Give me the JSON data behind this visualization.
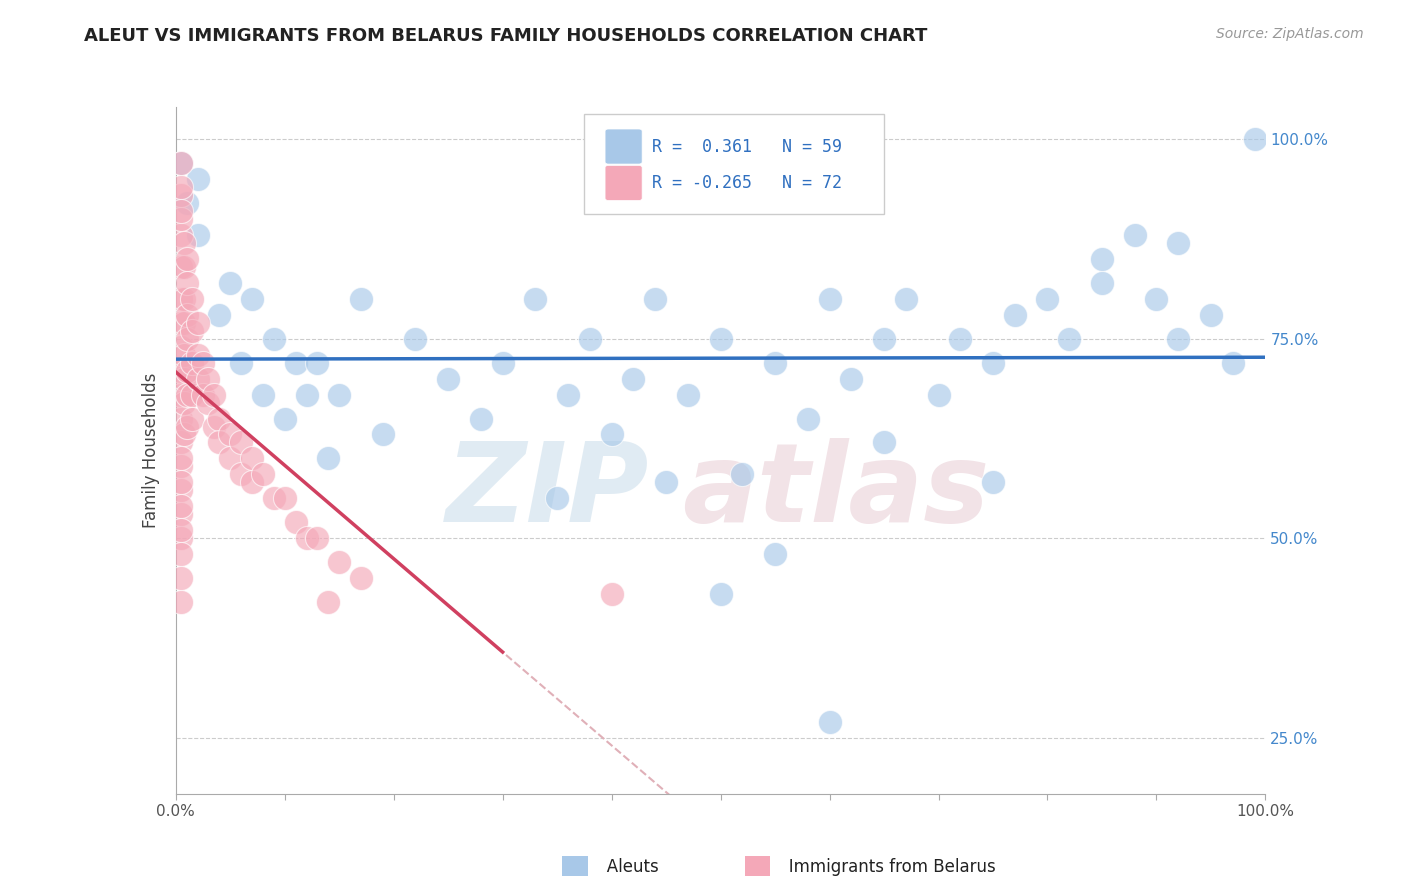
{
  "title": "ALEUT VS IMMIGRANTS FROM BELARUS FAMILY HOUSEHOLDS CORRELATION CHART",
  "source_text": "Source: ZipAtlas.com",
  "ylabel": "Family Households",
  "xlim": [
    0.0,
    1.0
  ],
  "ylim": [
    0.18,
    1.04
  ],
  "y_ticks": [
    0.25,
    0.5,
    0.75,
    1.0
  ],
  "y_tick_labels": [
    "25.0%",
    "50.0%",
    "75.0%",
    "100.0%"
  ],
  "x_ticks": [
    0.0,
    0.1,
    0.2,
    0.3,
    0.4,
    0.5,
    0.6,
    0.7,
    0.8,
    0.9,
    1.0
  ],
  "x_tick_labels_show": [
    "0.0%",
    "",
    "",
    "",
    "",
    "",
    "",
    "",
    "",
    "",
    "100.0%"
  ],
  "legend_r_blue": "R =  0.361",
  "legend_n_blue": "N = 59",
  "legend_r_pink": "R = -0.265",
  "legend_n_pink": "N = 72",
  "blue_color": "#a8c8e8",
  "pink_color": "#f4a8b8",
  "trend_blue_color": "#3070c0",
  "trend_pink_color": "#d04060",
  "trend_dashed_color": "#e0b0b8",
  "bottom_label_blue": "Aleuts",
  "bottom_label_pink": "Immigrants from Belarus",
  "aleuts_x": [
    0.005,
    0.01,
    0.02,
    0.02,
    0.04,
    0.05,
    0.06,
    0.07,
    0.08,
    0.09,
    0.1,
    0.11,
    0.12,
    0.13,
    0.14,
    0.15,
    0.17,
    0.19,
    0.22,
    0.25,
    0.28,
    0.3,
    0.33,
    0.36,
    0.38,
    0.4,
    0.42,
    0.44,
    0.47,
    0.5,
    0.52,
    0.55,
    0.58,
    0.6,
    0.62,
    0.65,
    0.67,
    0.7,
    0.72,
    0.75,
    0.77,
    0.8,
    0.82,
    0.85,
    0.88,
    0.9,
    0.92,
    0.95,
    0.97,
    0.99,
    0.35,
    0.45,
    0.55,
    0.65,
    0.75,
    0.85,
    0.92,
    0.5,
    0.6
  ],
  "aleuts_y": [
    0.97,
    0.92,
    0.88,
    0.95,
    0.78,
    0.82,
    0.72,
    0.8,
    0.68,
    0.75,
    0.65,
    0.72,
    0.68,
    0.72,
    0.6,
    0.68,
    0.8,
    0.63,
    0.75,
    0.7,
    0.65,
    0.72,
    0.8,
    0.68,
    0.75,
    0.63,
    0.7,
    0.8,
    0.68,
    0.75,
    0.58,
    0.72,
    0.65,
    0.8,
    0.7,
    0.75,
    0.8,
    0.68,
    0.75,
    0.72,
    0.78,
    0.8,
    0.75,
    0.82,
    0.88,
    0.8,
    0.75,
    0.78,
    0.72,
    1.0,
    0.55,
    0.57,
    0.48,
    0.62,
    0.57,
    0.85,
    0.87,
    0.43,
    0.27
  ],
  "belarus_x": [
    0.005,
    0.005,
    0.005,
    0.005,
    0.005,
    0.005,
    0.005,
    0.005,
    0.005,
    0.005,
    0.005,
    0.005,
    0.005,
    0.005,
    0.005,
    0.008,
    0.008,
    0.008,
    0.008,
    0.008,
    0.008,
    0.008,
    0.008,
    0.01,
    0.01,
    0.01,
    0.01,
    0.01,
    0.01,
    0.01,
    0.015,
    0.015,
    0.015,
    0.015,
    0.015,
    0.02,
    0.02,
    0.02,
    0.025,
    0.025,
    0.03,
    0.03,
    0.035,
    0.035,
    0.04,
    0.04,
    0.05,
    0.05,
    0.06,
    0.06,
    0.07,
    0.07,
    0.08,
    0.09,
    0.1,
    0.11,
    0.12,
    0.13,
    0.14,
    0.15,
    0.17,
    0.4,
    0.005,
    0.005,
    0.005,
    0.005,
    0.005,
    0.005,
    0.005,
    0.005,
    0.005,
    0.005
  ],
  "belarus_y": [
    0.88,
    0.84,
    0.8,
    0.77,
    0.74,
    0.71,
    0.68,
    0.65,
    0.62,
    0.59,
    0.56,
    0.53,
    0.5,
    0.9,
    0.93,
    0.87,
    0.84,
    0.8,
    0.77,
    0.73,
    0.7,
    0.67,
    0.63,
    0.85,
    0.82,
    0.78,
    0.75,
    0.71,
    0.68,
    0.64,
    0.8,
    0.76,
    0.72,
    0.68,
    0.65,
    0.77,
    0.73,
    0.7,
    0.72,
    0.68,
    0.7,
    0.67,
    0.68,
    0.64,
    0.65,
    0.62,
    0.63,
    0.6,
    0.62,
    0.58,
    0.6,
    0.57,
    0.58,
    0.55,
    0.55,
    0.52,
    0.5,
    0.5,
    0.42,
    0.47,
    0.45,
    0.43,
    0.42,
    0.94,
    0.91,
    0.97,
    0.6,
    0.57,
    0.54,
    0.51,
    0.48,
    0.45
  ]
}
